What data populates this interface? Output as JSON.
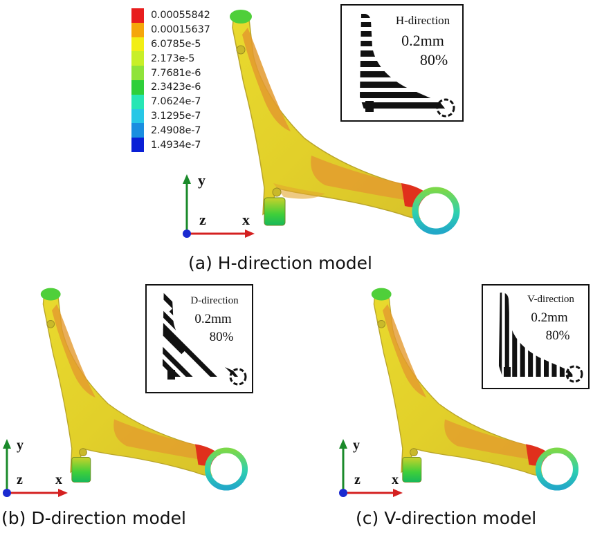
{
  "legend": {
    "entries": [
      {
        "label": "0.00055842",
        "color": "#e81d1d"
      },
      {
        "label": "0.00015637",
        "color": "#f5a60a"
      },
      {
        "label": "6.0785e-5",
        "color": "#f2ee14"
      },
      {
        "label": "2.173e-5",
        "color": "#c8ef28"
      },
      {
        "label": "7.7681e-6",
        "color": "#8fe33a"
      },
      {
        "label": "2.3423e-6",
        "color": "#2fcf3a"
      },
      {
        "label": "7.0624e-7",
        "color": "#27e6b4"
      },
      {
        "label": "3.1295e-7",
        "color": "#27c7e6"
      },
      {
        "label": "2.4908e-7",
        "color": "#1a8ee0"
      },
      {
        "label": "1.4934e-7",
        "color": "#0a1fd6"
      }
    ]
  },
  "panels": [
    {
      "caption": "(a) H-direction model",
      "inset": {
        "direction": "H-direction",
        "thickness": "0.2mm",
        "ratio": "80%"
      },
      "axes": {
        "x": "x",
        "y": "y",
        "z": "z"
      }
    },
    {
      "caption": "(b) D-direction model",
      "inset": {
        "direction": "D-direction",
        "thickness": "0.2mm",
        "ratio": "80%"
      },
      "axes": {
        "x": "x",
        "y": "y",
        "z": "z"
      }
    },
    {
      "caption": "(c) V-direction model",
      "inset": {
        "direction": "V-direction",
        "thickness": "0.2mm",
        "ratio": "80%"
      },
      "axes": {
        "x": "x",
        "y": "y",
        "z": "z"
      }
    }
  ],
  "colors": {
    "body_yellow": "#e8d62a",
    "body_orange": "#e39a2e",
    "hot_red": "#e0301c",
    "tip_green": "#4fcf3a",
    "ring_teal": "#3fd0c0",
    "axis_y": "#1a8a2a",
    "axis_x": "#d42020",
    "axis_z": "#1a2ad0"
  }
}
